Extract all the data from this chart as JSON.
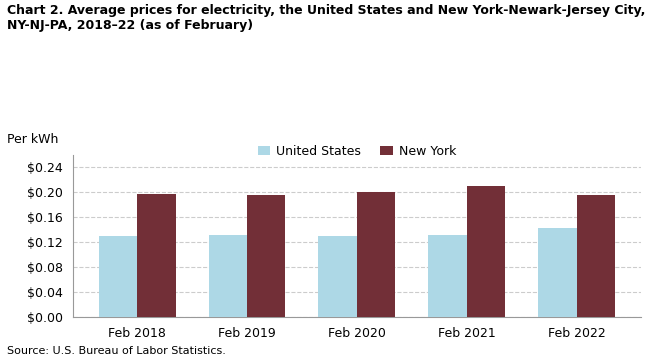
{
  "title": "Chart 2. Average prices for electricity, the United States and New York-Newark-Jersey City,\nNY-NJ-PA, 2018–22 (as of February)",
  "ylabel": "Per kWh",
  "source": "Source: U.S. Bureau of Labor Statistics.",
  "categories": [
    "Feb 2018",
    "Feb 2019",
    "Feb 2020",
    "Feb 2021",
    "Feb 2022"
  ],
  "us_values": [
    0.13,
    0.131,
    0.129,
    0.131,
    0.142
  ],
  "ny_values": [
    0.197,
    0.196,
    0.2,
    0.21,
    0.196
  ],
  "us_color": "#ADD8E6",
  "ny_color": "#722F37",
  "us_label": "United States",
  "ny_label": "New York",
  "ylim": [
    0,
    0.26
  ],
  "yticks": [
    0.0,
    0.04,
    0.08,
    0.12,
    0.16,
    0.2,
    0.24
  ],
  "bar_width": 0.35,
  "background_color": "#ffffff",
  "grid_color": "#cccccc"
}
